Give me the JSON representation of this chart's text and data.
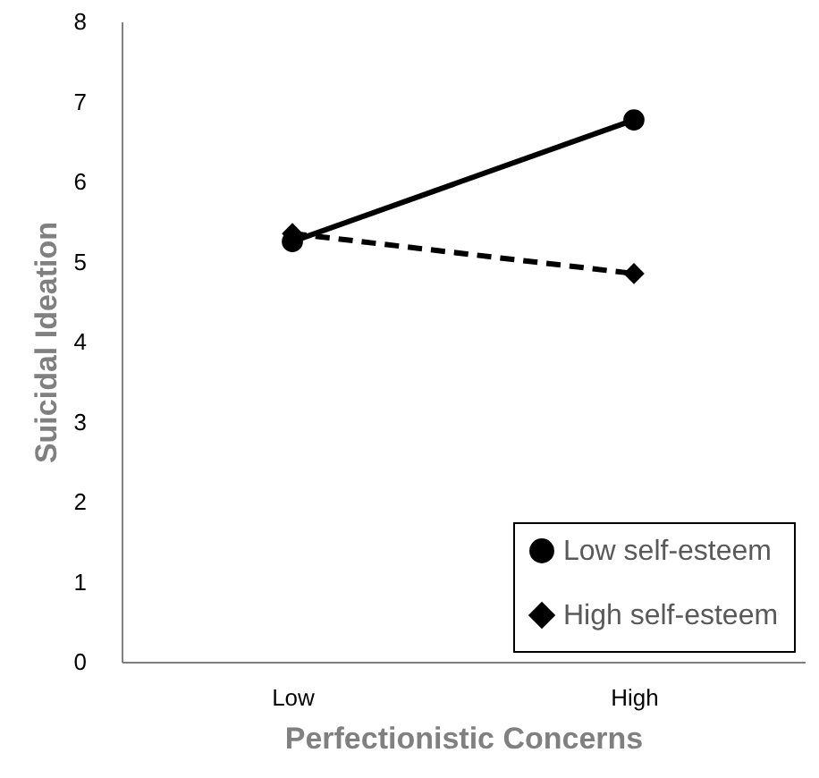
{
  "chart_data": {
    "type": "line",
    "xlabel": "Perfectionistic Concerns",
    "ylabel": "Suicidal Ideation",
    "categories": [
      "Low",
      "High"
    ],
    "ylim": [
      0,
      8
    ],
    "yticks": [
      0,
      1,
      2,
      3,
      4,
      5,
      6,
      7,
      8
    ],
    "grid": false,
    "legend": "bottom right",
    "series": [
      {
        "name": "Low self-esteem",
        "color": "#000000",
        "values": [
          5.25,
          6.77
        ],
        "marker": "circle",
        "line_style": "solid"
      },
      {
        "name": "High self-esteem",
        "color": "#000000",
        "values": [
          5.35,
          4.85
        ],
        "marker": "diamond",
        "line_style": "dashed"
      }
    ]
  }
}
